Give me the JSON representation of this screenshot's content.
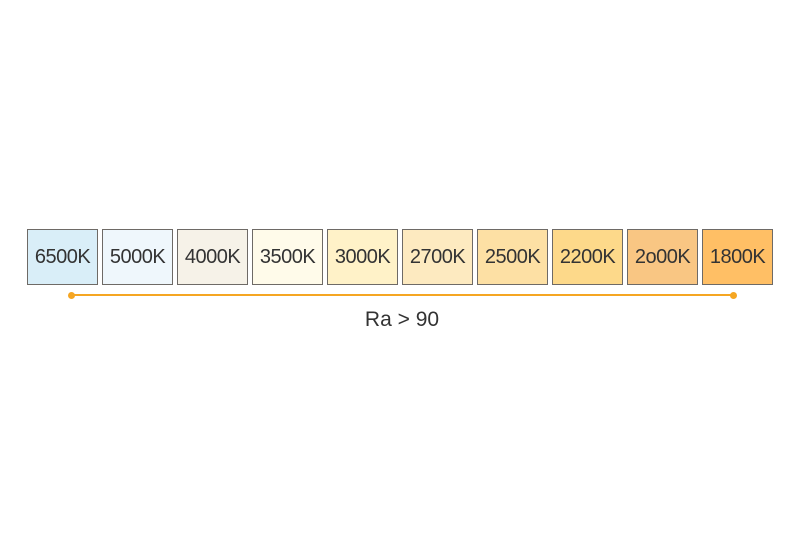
{
  "swatches": [
    {
      "label": "6500K",
      "color": "#d9eef8"
    },
    {
      "label": "5000K",
      "color": "#eff7fc"
    },
    {
      "label": "4000K",
      "color": "#f6f2e8"
    },
    {
      "label": "3500K",
      "color": "#fffbea"
    },
    {
      "label": "3000K",
      "color": "#fff2c8"
    },
    {
      "label": "2700K",
      "color": "#fdeac0"
    },
    {
      "label": "2500K",
      "color": "#fde0a4"
    },
    {
      "label": "2200K",
      "color": "#fdd98a"
    },
    {
      "label": "2o00K",
      "color": "#f9c683"
    },
    {
      "label": "1800K",
      "color": "#ffbf65"
    }
  ],
  "range": {
    "label": "Ra > 90",
    "color": "#f5a623"
  }
}
